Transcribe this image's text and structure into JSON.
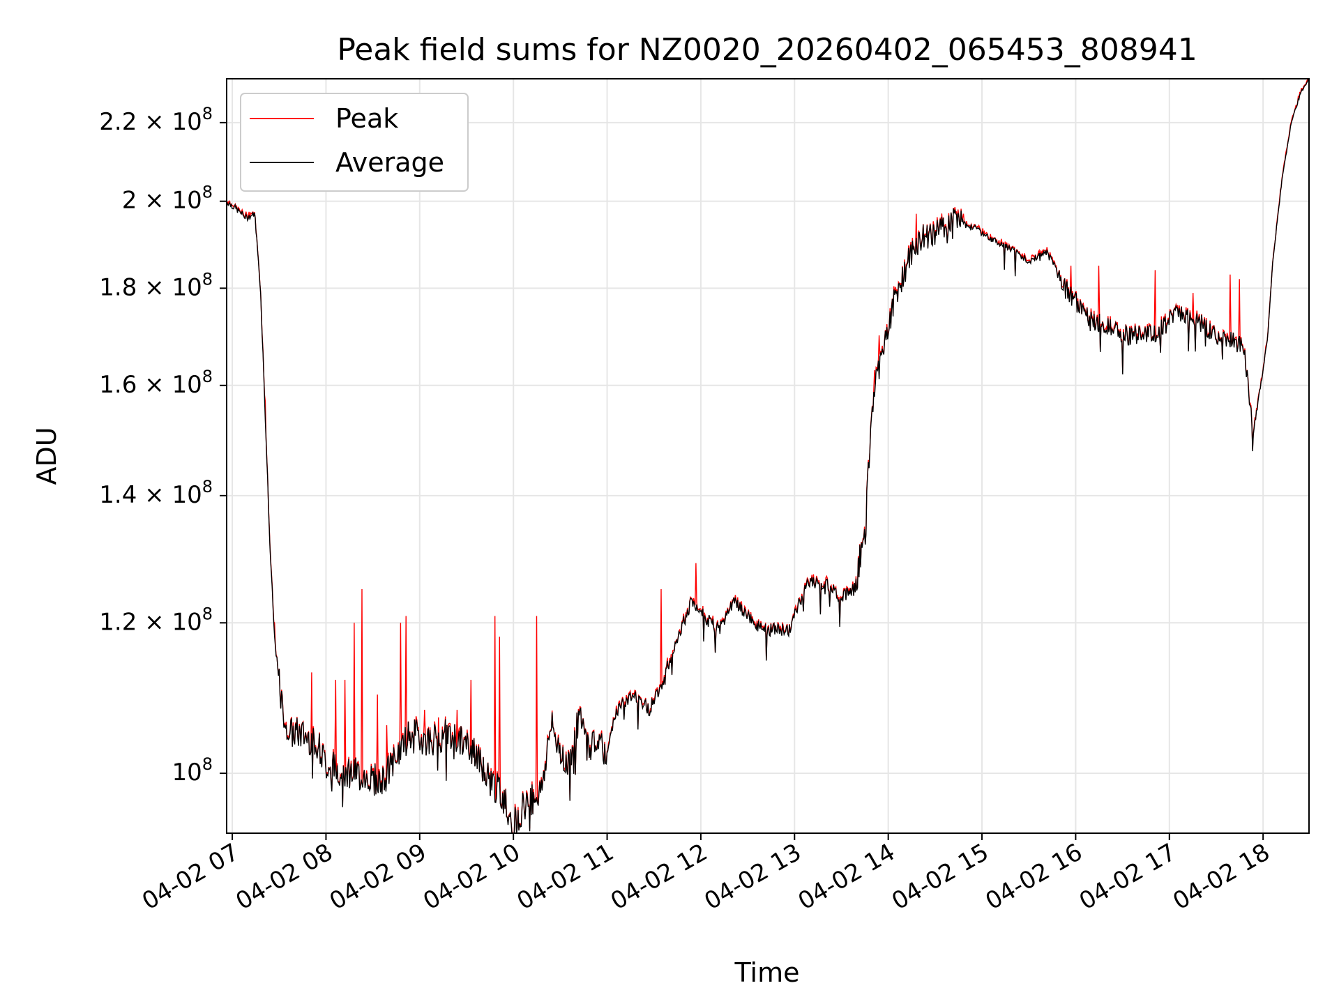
{
  "chart_data": {
    "type": "line",
    "title": "Peak field sums for NZ0020_20260402_065453_808941",
    "xlabel": "Time",
    "ylabel": "ADU",
    "y_scale": "log",
    "ylim": [
      93000000,
      232000000
    ],
    "xlim": [
      6.94,
      18.49
    ],
    "grid": true,
    "legend_position": "top-left",
    "x_ticks": [
      {
        "value": 7,
        "label": "04-02 07"
      },
      {
        "value": 8,
        "label": "04-02 08"
      },
      {
        "value": 9,
        "label": "04-02 09"
      },
      {
        "value": 10,
        "label": "04-02 10"
      },
      {
        "value": 11,
        "label": "04-02 11"
      },
      {
        "value": 12,
        "label": "04-02 12"
      },
      {
        "value": 13,
        "label": "04-02 13"
      },
      {
        "value": 14,
        "label": "04-02 14"
      },
      {
        "value": 15,
        "label": "04-02 15"
      },
      {
        "value": 16,
        "label": "04-02 16"
      },
      {
        "value": 17,
        "label": "04-02 17"
      },
      {
        "value": 18,
        "label": "04-02 18"
      }
    ],
    "y_ticks": [
      {
        "value": 100000000,
        "mantissa": "",
        "base": "10",
        "exp": "8"
      },
      {
        "value": 120000000,
        "mantissa": "1.2",
        "base": "10",
        "exp": "8"
      },
      {
        "value": 140000000,
        "mantissa": "1.4",
        "base": "10",
        "exp": "8"
      },
      {
        "value": 160000000,
        "mantissa": "1.6",
        "base": "10",
        "exp": "8"
      },
      {
        "value": 180000000,
        "mantissa": "1.8",
        "base": "10",
        "exp": "8"
      },
      {
        "value": 200000000,
        "mantissa": "2",
        "base": "10",
        "exp": "8"
      },
      {
        "value": 220000000,
        "mantissa": "2.2",
        "base": "10",
        "exp": "8"
      }
    ],
    "average_keypoints": [
      [
        6.94,
        200000000.0
      ],
      [
        7.05,
        198000000.0
      ],
      [
        7.15,
        196000000.0
      ],
      [
        7.24,
        197000000.0
      ],
      [
        7.3,
        180000000.0
      ],
      [
        7.35,
        155000000.0
      ],
      [
        7.4,
        132000000.0
      ],
      [
        7.45,
        118000000.0
      ],
      [
        7.52,
        109000000.0
      ],
      [
        7.6,
        105000000.0
      ],
      [
        7.7,
        105000000.0
      ],
      [
        7.9,
        104000000.0
      ],
      [
        8.0,
        101000000.0
      ],
      [
        8.3,
        100000000.0
      ],
      [
        8.6,
        99000000.0
      ],
      [
        8.9,
        105000000.0
      ],
      [
        9.1,
        104000000.0
      ],
      [
        9.3,
        105000000.0
      ],
      [
        9.55,
        103000000.0
      ],
      [
        9.7,
        100000000.0
      ],
      [
        9.9,
        97000000.0
      ],
      [
        10.0,
        94000000.0
      ],
      [
        10.1,
        96000000.0
      ],
      [
        10.3,
        98000000.0
      ],
      [
        10.4,
        106000000.0
      ],
      [
        10.5,
        103000000.0
      ],
      [
        10.6,
        101000000.0
      ],
      [
        10.7,
        107000000.0
      ],
      [
        10.8,
        103000000.0
      ],
      [
        10.9,
        105000000.0
      ],
      [
        11.0,
        102000000.0
      ],
      [
        11.1,
        108000000.0
      ],
      [
        11.3,
        110000000.0
      ],
      [
        11.45,
        108000000.0
      ],
      [
        11.6,
        112000000.0
      ],
      [
        11.75,
        118000000.0
      ],
      [
        11.9,
        123000000.0
      ],
      [
        12.1,
        120000000.0
      ],
      [
        12.2,
        119000000.0
      ],
      [
        12.35,
        123000000.0
      ],
      [
        12.5,
        121000000.0
      ],
      [
        12.65,
        119000000.0
      ],
      [
        12.8,
        119000000.0
      ],
      [
        12.95,
        119000000.0
      ],
      [
        13.05,
        123000000.0
      ],
      [
        13.15,
        126000000.0
      ],
      [
        13.3,
        126000000.0
      ],
      [
        13.5,
        124000000.0
      ],
      [
        13.65,
        125000000.0
      ],
      [
        13.75,
        135000000.0
      ],
      [
        13.85,
        160000000.0
      ],
      [
        13.95,
        168000000.0
      ],
      [
        14.1,
        180000000.0
      ],
      [
        14.3,
        190000000.0
      ],
      [
        14.5,
        193000000.0
      ],
      [
        14.7,
        195000000.0
      ],
      [
        14.9,
        194000000.0
      ],
      [
        15.1,
        191000000.0
      ],
      [
        15.3,
        189000000.0
      ],
      [
        15.5,
        186000000.0
      ],
      [
        15.7,
        188000000.0
      ],
      [
        15.9,
        180000000.0
      ],
      [
        16.1,
        174000000.0
      ],
      [
        16.3,
        172000000.0
      ],
      [
        16.5,
        170000000.0
      ],
      [
        16.7,
        170000000.0
      ],
      [
        16.9,
        171000000.0
      ],
      [
        17.1,
        175000000.0
      ],
      [
        17.3,
        173000000.0
      ],
      [
        17.5,
        170000000.0
      ],
      [
        17.7,
        169000000.0
      ],
      [
        17.8,
        167000000.0
      ],
      [
        17.85,
        158000000.0
      ],
      [
        17.9,
        152000000.0
      ],
      [
        17.95,
        157000000.0
      ],
      [
        18.0,
        163000000.0
      ],
      [
        18.05,
        170000000.0
      ],
      [
        18.1,
        185000000.0
      ],
      [
        18.2,
        205000000.0
      ],
      [
        18.3,
        220000000.0
      ],
      [
        18.4,
        228000000.0
      ],
      [
        18.49,
        232000000.0
      ]
    ],
    "peak_spikes": [
      [
        7.35,
        157000000.0
      ],
      [
        7.45,
        120000000.0
      ],
      [
        7.85,
        113000000.0
      ],
      [
        8.1,
        112000000.0
      ],
      [
        8.2,
        112000000.0
      ],
      [
        8.3,
        120000000.0
      ],
      [
        8.38,
        125000000.0
      ],
      [
        8.55,
        110000000.0
      ],
      [
        8.65,
        106000000.0
      ],
      [
        8.8,
        120000000.0
      ],
      [
        8.85,
        121000000.0
      ],
      [
        9.05,
        108000000.0
      ],
      [
        9.2,
        107000000.0
      ],
      [
        9.4,
        108000000.0
      ],
      [
        9.55,
        112000000.0
      ],
      [
        9.8,
        121000000.0
      ],
      [
        9.85,
        118000000.0
      ],
      [
        10.25,
        121000000.0
      ],
      [
        11.58,
        125000000.0
      ],
      [
        11.95,
        129000000.0
      ],
      [
        13.85,
        163000000.0
      ],
      [
        13.9,
        170000000.0
      ],
      [
        14.3,
        197000000.0
      ],
      [
        14.8,
        197000000.0
      ],
      [
        15.95,
        185000000.0
      ],
      [
        16.25,
        185000000.0
      ],
      [
        16.85,
        184000000.0
      ],
      [
        17.25,
        179000000.0
      ],
      [
        17.65,
        183000000.0
      ],
      [
        17.75,
        182000000.0
      ]
    ],
    "series": [
      {
        "name": "Peak",
        "color": "#ff0000"
      },
      {
        "name": "Average",
        "color": "#000000"
      }
    ]
  }
}
